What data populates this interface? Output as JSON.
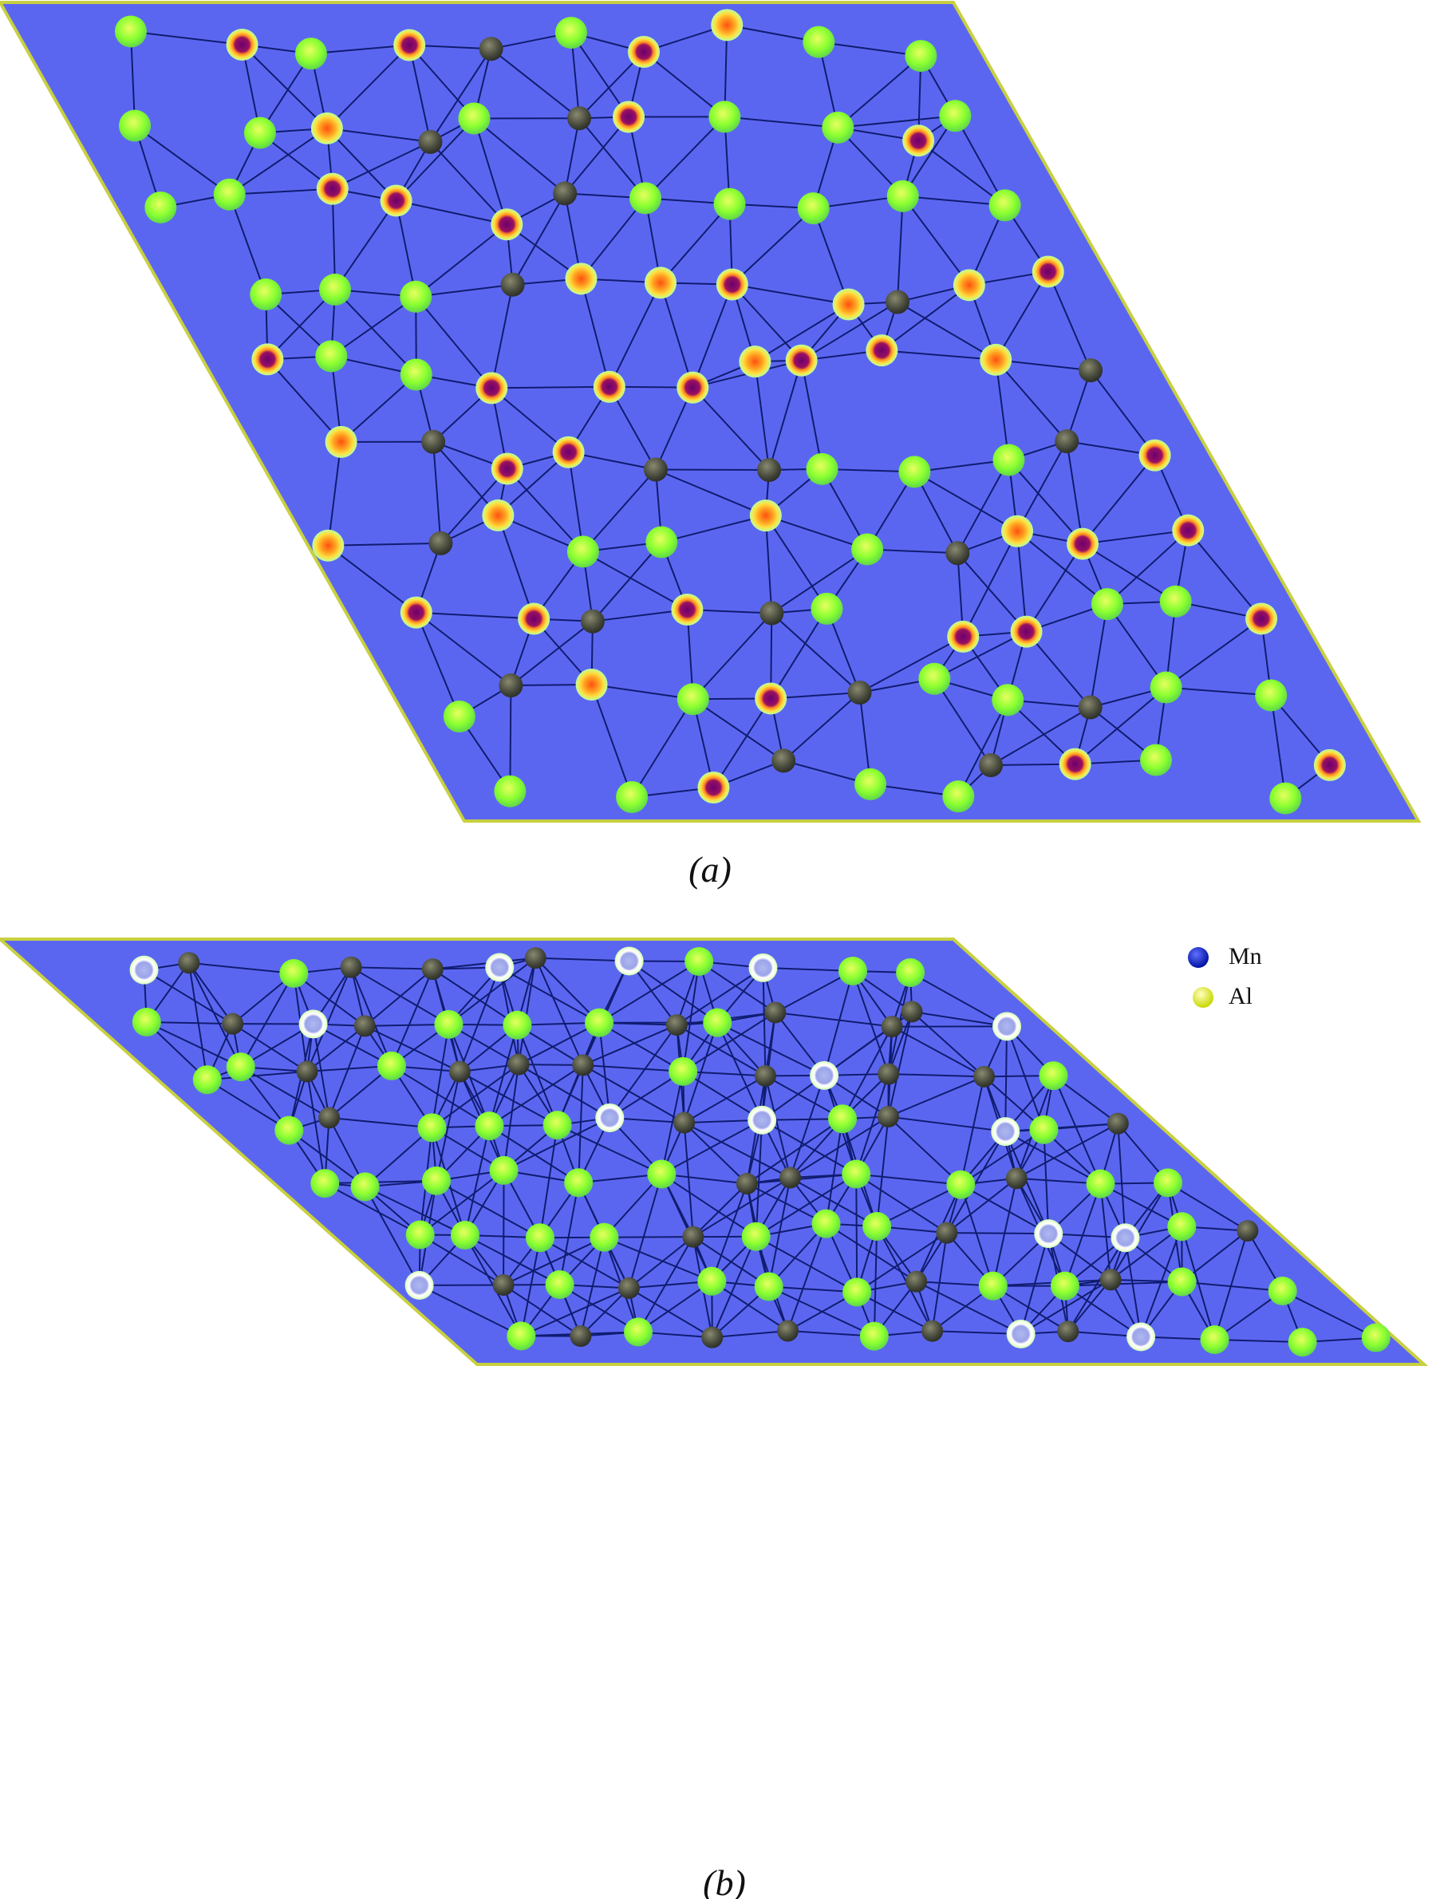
{
  "panels": [
    {
      "label": "(a)"
    },
    {
      "label": "(b)"
    }
  ],
  "legend": [
    {
      "label": "Mn"
    },
    {
      "label": "Al"
    }
  ]
}
